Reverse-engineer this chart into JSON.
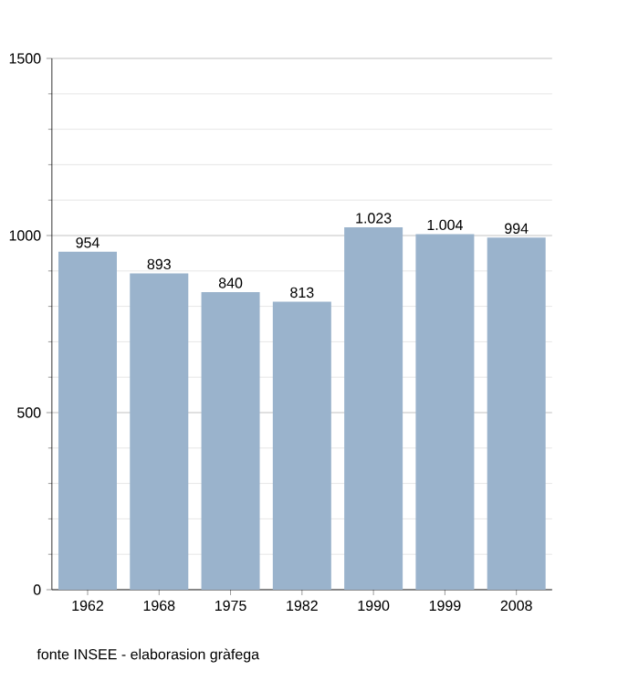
{
  "chart_data": {
    "type": "bar",
    "categories": [
      "1962",
      "1968",
      "1975",
      "1982",
      "1990",
      "1999",
      "2008"
    ],
    "values": [
      954,
      893,
      840,
      813,
      1023,
      1004,
      994
    ],
    "value_labels": [
      "954",
      "893",
      "840",
      "813",
      "1.023",
      "1.004",
      "994"
    ],
    "color": "#9ab3cc",
    "ylim": [
      0,
      1500
    ],
    "yticks": [
      0,
      500,
      1000,
      1500
    ],
    "grid": "y",
    "annotations": [
      "fonte INSEE - elaborasion gràfega"
    ]
  }
}
